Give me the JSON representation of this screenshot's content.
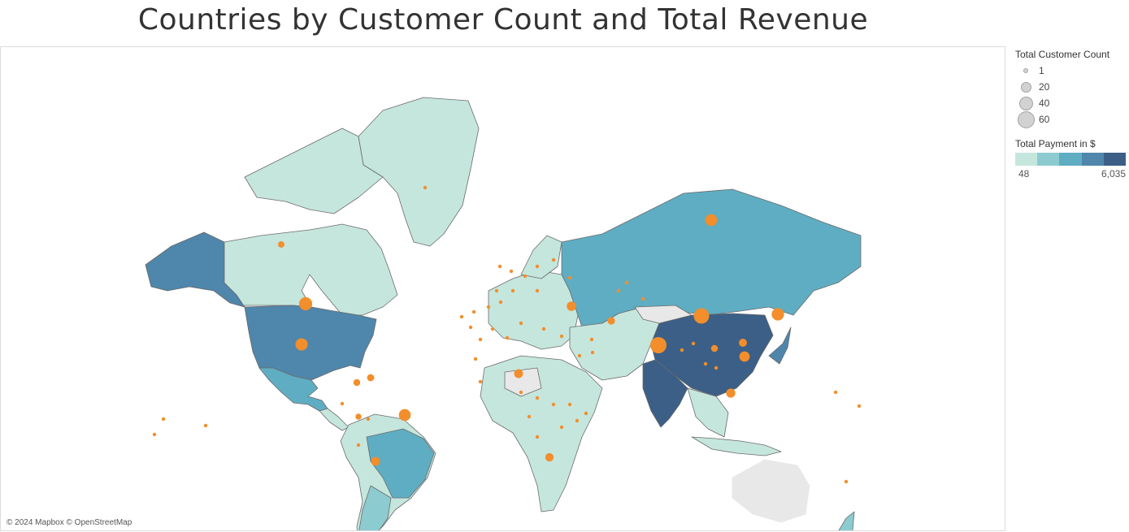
{
  "title": "Countries by Customer Count and Total Revenue",
  "attribution": "© 2024 Mapbox © OpenStreetMap",
  "legend": {
    "size_title": "Total Customer Count",
    "size_items": [
      {
        "label": "1",
        "value": 1
      },
      {
        "label": "20",
        "value": 20
      },
      {
        "label": "40",
        "value": 40
      },
      {
        "label": "60",
        "value": 60
      }
    ],
    "color_title": "Total Payment in $",
    "color_min_label": "48",
    "color_max_label": "6,035",
    "color_steps": [
      "#c5e6dd",
      "#8ccbd0",
      "#5fadc3",
      "#4f86ab",
      "#3b5f87"
    ]
  },
  "colors": {
    "bubble": "#f28e2b",
    "nodata_land": "#e8e8e8",
    "border": "#5a5a5a"
  },
  "bubbles": [
    {
      "country": "United States",
      "customers": 36
    },
    {
      "country": "Canada",
      "customers": 5
    },
    {
      "country": "Mexico",
      "customers": 30
    },
    {
      "country": "Brazil",
      "customers": 28
    },
    {
      "country": "Argentina",
      "customers": 13
    },
    {
      "country": "Russia",
      "customers": 28
    },
    {
      "country": "China",
      "customers": 53
    },
    {
      "country": "India",
      "customers": 60
    },
    {
      "country": "Japan",
      "customers": 31
    },
    {
      "country": "Philippines",
      "customers": 20
    },
    {
      "country": "Indonesia",
      "customers": 14
    },
    {
      "country": "Nigeria",
      "customers": 13
    },
    {
      "country": "Turkey",
      "customers": 15
    },
    {
      "country": "South Africa",
      "customers": 11
    },
    {
      "country": "Iran",
      "customers": 8
    },
    {
      "country": "Taiwan",
      "customers": 10
    },
    {
      "country": "Vietnam",
      "customers": 6
    },
    {
      "country": "Colombia",
      "customers": 6
    },
    {
      "country": "Peru",
      "customers": 4
    },
    {
      "country": "Venezuela",
      "customers": 7
    }
  ]
}
